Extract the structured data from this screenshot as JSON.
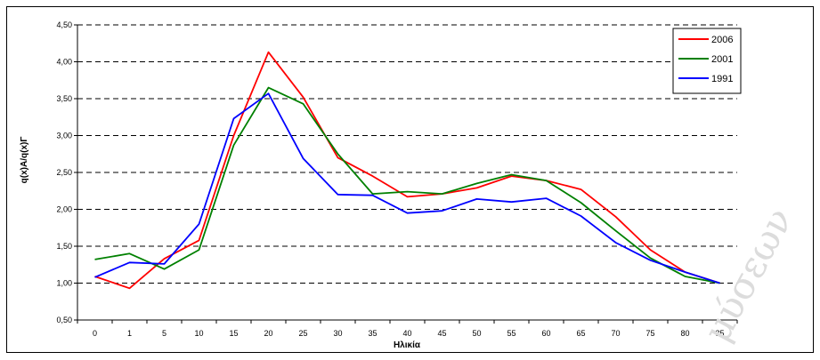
{
  "chart_data": {
    "type": "line",
    "title": "",
    "xlabel": "Ηλικία",
    "ylabel": "q(x)A/q(x)Γ",
    "categories": [
      "0",
      "1",
      "5",
      "10",
      "15",
      "20",
      "25",
      "30",
      "35",
      "40",
      "45",
      "50",
      "55",
      "60",
      "65",
      "70",
      "75",
      "80",
      "85"
    ],
    "ylim": [
      0.5,
      4.5
    ],
    "yticks": [
      "0,50",
      "1,00",
      "1,50",
      "2,00",
      "2,50",
      "3,00",
      "3,50",
      "4,00",
      "4,50"
    ],
    "yticks_values": [
      0.5,
      1.0,
      1.5,
      2.0,
      2.5,
      3.0,
      3.5,
      4.0,
      4.5
    ],
    "grid": "horizontal-dashed",
    "legend_position": "top-right",
    "series": [
      {
        "name": "2006",
        "color": "#ff0000",
        "values": [
          1.09,
          0.93,
          1.33,
          1.58,
          3.0,
          4.13,
          3.52,
          2.7,
          2.45,
          2.17,
          2.21,
          2.29,
          2.45,
          2.39,
          2.27,
          1.9,
          1.45,
          1.15,
          1.0
        ]
      },
      {
        "name": "2001",
        "color": "#008000",
        "values": [
          1.32,
          1.4,
          1.19,
          1.45,
          2.87,
          3.65,
          3.43,
          2.75,
          2.21,
          2.24,
          2.21,
          2.35,
          2.47,
          2.39,
          2.09,
          1.71,
          1.34,
          1.09,
          1.0
        ]
      },
      {
        "name": "1991",
        "color": "#0000ff",
        "values": [
          1.08,
          1.28,
          1.26,
          1.8,
          3.23,
          3.57,
          2.69,
          2.2,
          2.19,
          1.95,
          1.98,
          2.14,
          2.1,
          2.15,
          1.91,
          1.55,
          1.31,
          1.15,
          1.0
        ]
      }
    ]
  }
}
